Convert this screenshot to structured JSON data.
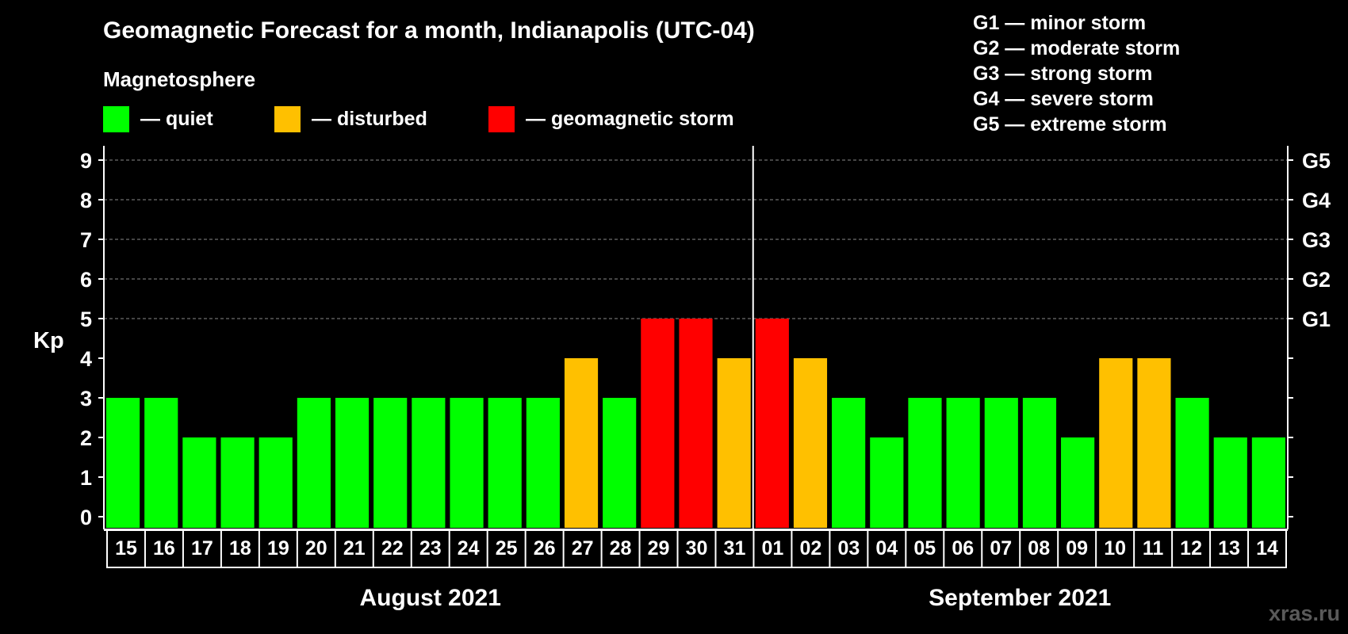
{
  "chart_data": {
    "type": "bar",
    "title": "Geomagnetic Forecast for a month, Indianapolis (UTC-04)",
    "subtitle": "Magnetosphere",
    "ylabel": "Kp",
    "ylim": [
      0,
      9
    ],
    "yticks": [
      "0",
      "1",
      "2",
      "3",
      "4",
      "5",
      "6",
      "7",
      "8",
      "9"
    ],
    "grid": true,
    "legend": [
      {
        "label": "— quiet",
        "color": "#00ff00"
      },
      {
        "label": "— disturbed",
        "color": "#ffc000"
      },
      {
        "label": "— geomagnetic storm",
        "color": "#ff0000"
      }
    ],
    "g_scale_legend": [
      "G1 — minor storm",
      "G2 — moderate storm",
      "G3 — strong storm",
      "G4 — severe storm",
      "G5 — extreme storm"
    ],
    "g_axis": [
      {
        "kp": 5,
        "label": "G1"
      },
      {
        "kp": 6,
        "label": "G2"
      },
      {
        "kp": 7,
        "label": "G3"
      },
      {
        "kp": 8,
        "label": "G4"
      },
      {
        "kp": 9,
        "label": "G5"
      }
    ],
    "categories": [
      "15",
      "16",
      "17",
      "18",
      "19",
      "20",
      "21",
      "22",
      "23",
      "24",
      "25",
      "26",
      "27",
      "28",
      "29",
      "30",
      "31",
      "01",
      "02",
      "03",
      "04",
      "05",
      "06",
      "07",
      "08",
      "09",
      "10",
      "11",
      "12",
      "13",
      "14"
    ],
    "values": [
      3,
      3,
      2,
      2,
      2,
      3,
      3,
      3,
      3,
      3,
      3,
      3,
      4,
      3,
      5,
      5,
      4,
      5,
      4,
      3,
      2,
      3,
      3,
      3,
      3,
      2,
      4,
      4,
      3,
      2,
      2
    ],
    "colors": {
      "quiet": "#00ff00",
      "disturbed": "#ffc000",
      "storm": "#ff0000"
    },
    "months": [
      {
        "label": "August 2021",
        "start": 0,
        "end": 16
      },
      {
        "label": "September 2021",
        "start": 17,
        "end": 30
      }
    ],
    "month_divider_after_index": 16
  },
  "watermark": "xras.ru"
}
